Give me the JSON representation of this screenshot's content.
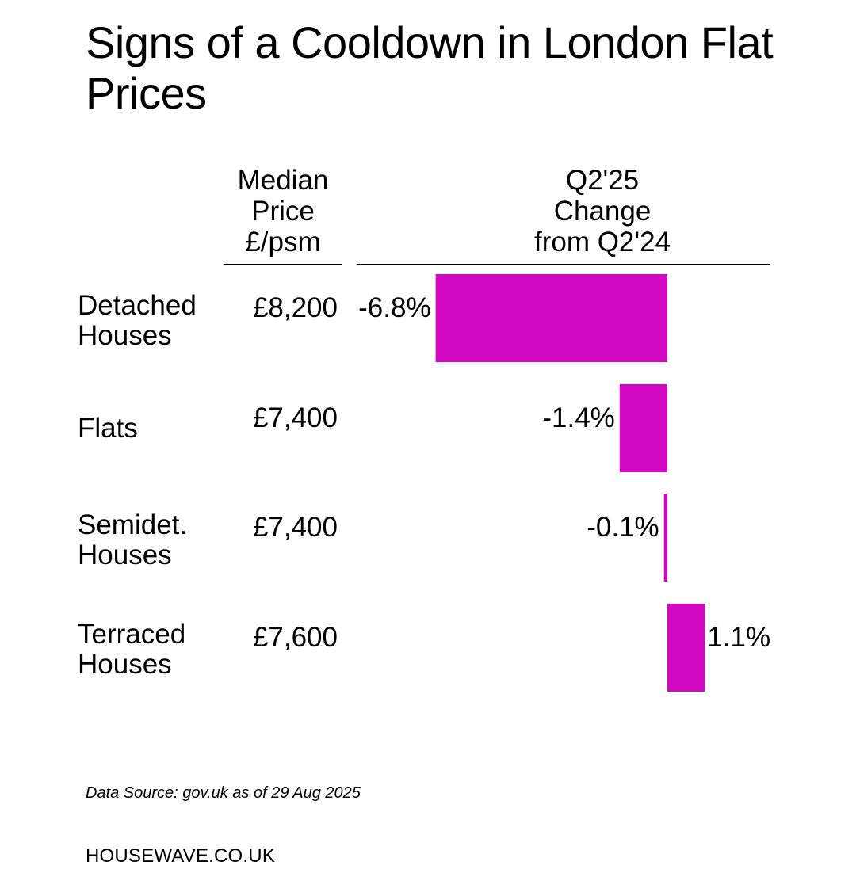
{
  "title": "Signs of a Cooldown in London Flat Prices",
  "columns": {
    "price": [
      "Median",
      "Price",
      "£/psm"
    ],
    "change": [
      "Q2'25",
      "Change",
      "from Q2'24"
    ]
  },
  "rows": [
    {
      "label": [
        "Detached",
        "Houses"
      ],
      "price": "£8,200",
      "change_label": "-6.8%"
    },
    {
      "label": [
        "Flats"
      ],
      "price": "£7,400",
      "change_label": "-1.4%"
    },
    {
      "label": [
        "Semidet.",
        "Houses"
      ],
      "price": "£7,400",
      "change_label": "-0.1%"
    },
    {
      "label": [
        "Terraced",
        "Houses"
      ],
      "price": "£7,600",
      "change_label": "1.1%"
    }
  ],
  "chart_data": {
    "type": "bar",
    "orientation": "horizontal",
    "categories": [
      "Detached Houses",
      "Flats",
      "Semidet. Houses",
      "Terraced Houses"
    ],
    "series": [
      {
        "values": [
          -6.8,
          -1.4,
          -0.1,
          1.1
        ]
      }
    ],
    "data_labels": [
      "-6.8%",
      "-1.4%",
      "-0.1%",
      "1.1%"
    ],
    "ylabel": "Q2'25 Change from Q2'24",
    "grid": false,
    "legend": "none",
    "bar_color": "#D208C2"
  },
  "footer": {
    "source": "Data Source: gov.uk as of 29 Aug 2025",
    "brand": "HOUSEWAVE.CO.UK"
  },
  "colors": {
    "bar": "#D208C2",
    "text": "#000000",
    "background": "#FFFFFF"
  }
}
